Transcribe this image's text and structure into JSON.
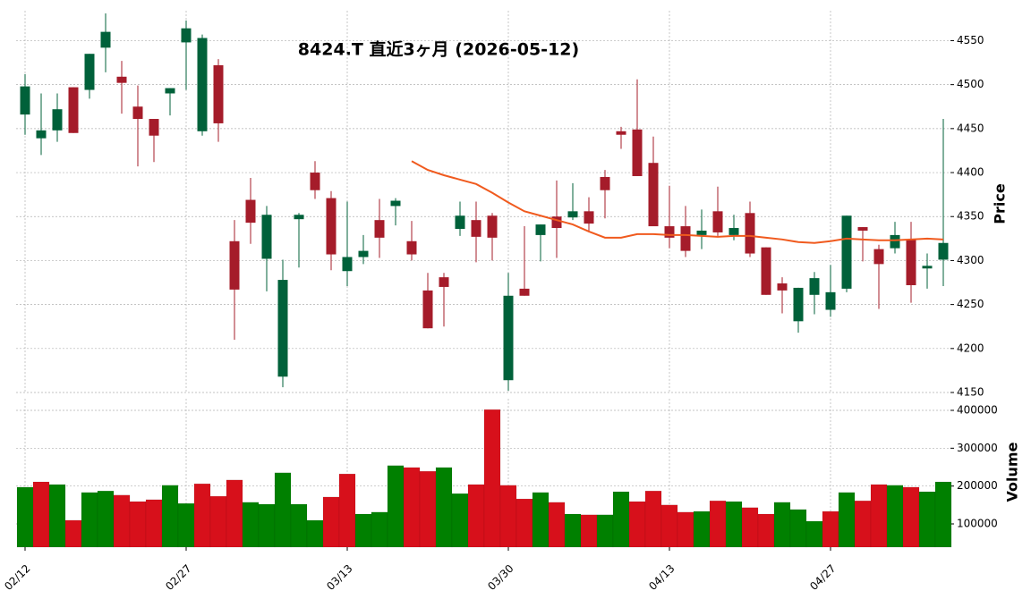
{
  "chart_data": [
    {
      "type": "candlestick",
      "title": "8424.T  直近3ヶ月  (2026-05-12)",
      "ylabel": "Price",
      "up_color": "#00613a",
      "down_color": "#a51c2a",
      "open": [
        4466,
        4439,
        4448,
        4497,
        4494,
        4542,
        4509,
        4475,
        4461,
        4490,
        4548,
        4447,
        4522,
        4322,
        4369,
        4302,
        4168,
        4347,
        4400,
        4371,
        4288,
        4304,
        4346,
        4362,
        4322,
        4266,
        4281,
        4336,
        4346,
        4351,
        4164,
        4268,
        4329,
        4350,
        4349,
        4356,
        4395,
        4447,
        4449,
        4411,
        4339,
        4339,
        4329,
        4356,
        4329,
        4354,
        4315,
        4274,
        4231,
        4261,
        4244,
        4268,
        4338,
        4313,
        4314,
        4324,
        4291,
        4301
      ],
      "high": [
        4512,
        4490,
        4490,
        4497,
        4535,
        4581,
        4527,
        4499,
        4461,
        4496,
        4573,
        4557,
        4529,
        4346,
        4394,
        4362,
        4301,
        4354,
        4413,
        4379,
        4367,
        4329,
        4370,
        4371,
        4345,
        4286,
        4286,
        4367,
        4367,
        4354,
        4286,
        4339,
        4341,
        4391,
        4388,
        4372,
        4403,
        4452,
        4506,
        4441,
        4385,
        4362,
        4358,
        4384,
        4352,
        4367,
        4315,
        4281,
        4269,
        4287,
        4295,
        4351,
        4338,
        4318,
        4344,
        4344,
        4308,
        4461
      ],
      "low": [
        4443,
        4420,
        4435,
        4445,
        4484,
        4514,
        4467,
        4407,
        4412,
        4465,
        4494,
        4442,
        4435,
        4210,
        4319,
        4265,
        4156,
        4292,
        4370,
        4289,
        4271,
        4296,
        4303,
        4340,
        4300,
        4223,
        4225,
        4328,
        4298,
        4300,
        4152,
        4260,
        4299,
        4303,
        4346,
        4332,
        4348,
        4427,
        4396,
        4339,
        4314,
        4304,
        4313,
        4328,
        4323,
        4304,
        4261,
        4240,
        4218,
        4239,
        4236,
        4264,
        4299,
        4245,
        4308,
        4252,
        4268,
        4271
      ],
      "close": [
        4498,
        4448,
        4472,
        4445,
        4535,
        4560,
        4502,
        4461,
        4442,
        4496,
        4564,
        4553,
        4456,
        4267,
        4343,
        4352,
        4278,
        4352,
        4380,
        4307,
        4304,
        4311,
        4326,
        4368,
        4307,
        4223,
        4270,
        4351,
        4327,
        4326,
        4260,
        4260,
        4341,
        4337,
        4356,
        4342,
        4380,
        4443,
        4396,
        4339,
        4326,
        4311,
        4334,
        4332,
        4337,
        4308,
        4261,
        4266,
        4269,
        4280,
        4264,
        4351,
        4334,
        4296,
        4329,
        4272,
        4294,
        4320
      ],
      "line": {
        "color": "#f05a1e",
        "values": [
          null,
          null,
          null,
          null,
          null,
          null,
          null,
          null,
          null,
          null,
          null,
          null,
          null,
          null,
          null,
          null,
          null,
          null,
          null,
          null,
          null,
          null,
          null,
          null,
          4413,
          4403,
          4397,
          4392,
          4387,
          4377,
          4366,
          4356,
          4351,
          4346,
          4341,
          4333,
          4326,
          4326,
          4330,
          4330,
          4329,
          4329,
          4328,
          4327,
          4328,
          4328,
          4326,
          4324,
          4321,
          4320,
          4322,
          4325,
          4324,
          4323,
          4323,
          4324,
          4325,
          4324
        ]
      },
      "ylim": [
        4149,
        4584
      ],
      "yticks": [
        4150,
        4200,
        4250,
        4300,
        4350,
        4400,
        4450,
        4500,
        4550
      ],
      "grid": true
    },
    {
      "type": "bar",
      "ylabel": "Volume",
      "categories": [
        "02/12",
        null,
        null,
        null,
        null,
        null,
        null,
        null,
        null,
        null,
        "02/27",
        null,
        null,
        null,
        null,
        null,
        null,
        null,
        null,
        null,
        "03/13",
        null,
        null,
        null,
        null,
        null,
        null,
        null,
        null,
        null,
        "03/30",
        null,
        null,
        null,
        null,
        null,
        null,
        null,
        null,
        null,
        "04/13",
        null,
        null,
        null,
        null,
        null,
        null,
        null,
        null,
        null,
        "04/27",
        null,
        null,
        null,
        null,
        null,
        null,
        null
      ],
      "values": [
        197000,
        211000,
        204000,
        109500,
        183000,
        187000,
        176000,
        159000,
        164000,
        202000,
        154000,
        206000,
        173000,
        216000,
        157000,
        152000,
        235000,
        152000,
        109500,
        171000,
        232000,
        126000,
        131000,
        254000,
        249000,
        239000,
        249000,
        180000,
        204000,
        402000,
        202000,
        166000,
        183000,
        157000,
        126000,
        124000,
        124000,
        185000,
        159000,
        187000,
        150000,
        131000,
        133000,
        161000,
        159000,
        143000,
        126000,
        157000,
        138000,
        107000,
        133000,
        183000,
        161000,
        204000,
        202000,
        197000,
        185000,
        211000
      ],
      "colors": [
        "#008000",
        "#d7101b",
        "#008000",
        "#d7101b",
        "#008000",
        "#008000",
        "#d7101b",
        "#d7101b",
        "#d7101b",
        "#008000",
        "#008000",
        "#d7101b",
        "#d7101b",
        "#d7101b",
        "#008000",
        "#008000",
        "#008000",
        "#008000",
        "#008000",
        "#d7101b",
        "#d7101b",
        "#008000",
        "#008000",
        "#008000",
        "#d7101b",
        "#d7101b",
        "#008000",
        "#008000",
        "#d7101b",
        "#d7101b",
        "#d7101b",
        "#d7101b",
        "#008000",
        "#d7101b",
        "#008000",
        "#d7101b",
        "#008000",
        "#008000",
        "#d7101b",
        "#d7101b",
        "#d7101b",
        "#d7101b",
        "#008000",
        "#d7101b",
        "#008000",
        "#d7101b",
        "#d7101b",
        "#008000",
        "#008000",
        "#008000",
        "#d7101b",
        "#008000",
        "#d7101b",
        "#d7101b",
        "#008000",
        "#d7101b",
        "#008000",
        "#008000"
      ],
      "ylim": [
        38600,
        430700
      ],
      "yticks": [
        100000,
        200000,
        300000,
        400000
      ],
      "grid": true
    }
  ]
}
